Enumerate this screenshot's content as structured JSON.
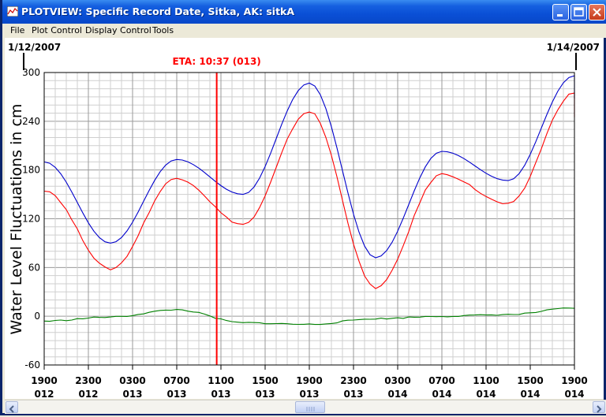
{
  "window": {
    "title": "PLOTVIEW: Specific Record Date, Sitka, AK: sitkA"
  },
  "menu": [
    "File",
    "Plot Control",
    "Display Control",
    "Tools"
  ],
  "plot": {
    "start_date": "1/12/2007",
    "end_date": "1/14/2007",
    "eta_label": "ETA: 10:37 (013)",
    "eta_color": "#ff0000"
  },
  "chart_data": {
    "type": "line",
    "ylabel": "Water Level Fluctuations in cm",
    "ylim": [
      -60,
      300
    ],
    "yticks": [
      300,
      240,
      180,
      120,
      60,
      0,
      -60
    ],
    "xticks": [
      {
        "time": "1900",
        "day": "012"
      },
      {
        "time": "2300",
        "day": "012"
      },
      {
        "time": "0300",
        "day": "013"
      },
      {
        "time": "0700",
        "day": "013"
      },
      {
        "time": "1100",
        "day": "013"
      },
      {
        "time": "1500",
        "day": "013"
      },
      {
        "time": "1900",
        "day": "013"
      },
      {
        "time": "2300",
        "day": "013"
      },
      {
        "time": "0300",
        "day": "014"
      },
      {
        "time": "0700",
        "day": "014"
      },
      {
        "time": "1100",
        "day": "014"
      },
      {
        "time": "1500",
        "day": "014"
      },
      {
        "time": "1900",
        "day": "014"
      }
    ],
    "grid": true,
    "series": [
      {
        "color": "#0000cc",
        "points": [
          [
            0,
            190
          ],
          [
            4,
            90
          ],
          [
            8,
            193
          ],
          [
            12,
            150
          ],
          [
            16,
            287
          ],
          [
            20,
            72
          ],
          [
            24,
            203
          ],
          [
            28,
            167
          ],
          [
            32,
            296
          ],
          [
            33,
            268
          ]
        ]
      },
      {
        "color": "#ff0000",
        "points": [
          [
            0,
            155
          ],
          [
            4,
            58
          ],
          [
            8,
            170
          ],
          [
            12,
            113
          ],
          [
            16,
            252
          ],
          [
            20,
            35
          ],
          [
            24,
            175
          ],
          [
            28,
            138
          ],
          [
            32,
            275
          ],
          [
            33,
            245
          ]
        ]
      },
      {
        "color": "#008000",
        "points": [
          [
            0,
            -6
          ],
          [
            4,
            -1
          ],
          [
            8,
            8
          ],
          [
            12,
            -8
          ],
          [
            16,
            -10
          ],
          [
            20,
            -3
          ],
          [
            24,
            0
          ],
          [
            28,
            2
          ],
          [
            32,
            10
          ],
          [
            33,
            9
          ]
        ]
      }
    ],
    "eta_time": 10.6167
  }
}
